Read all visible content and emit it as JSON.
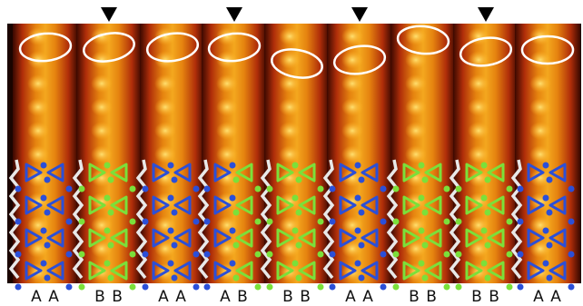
{
  "panels": [
    {
      "label": "A A"
    },
    {
      "label": "B B"
    },
    {
      "label": "A A"
    },
    {
      "label": "A B"
    },
    {
      "label": "B B"
    },
    {
      "label": "A A"
    },
    {
      "label": "B B"
    },
    {
      "label": "B B"
    },
    {
      "label": "A A"
    }
  ]
}
